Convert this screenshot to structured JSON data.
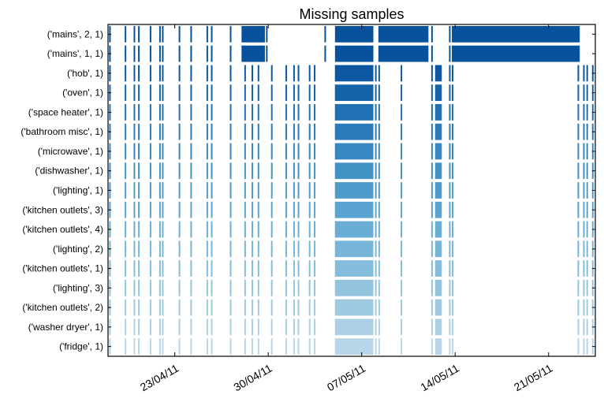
{
  "chart_data": {
    "type": "broken-bar timeline",
    "title": "Missing samples",
    "x_axis": {
      "range": [
        "2011-04-18",
        "2011-05-24T12:00"
      ],
      "tick_labels": [
        "23/04/11",
        "30/04/11",
        "07/05/11",
        "14/05/11",
        "21/05/11"
      ],
      "tick_values": [
        "2011-04-23",
        "2011-04-30",
        "2011-05-07",
        "2011-05-14",
        "2011-05-21"
      ]
    },
    "categories": [
      "('mains', 2, 1)",
      "('mains', 1, 1)",
      "('hob', 1)",
      "('oven', 1)",
      "('space heater', 1)",
      "('bathroom misc', 1)",
      "('microwave', 1)",
      "('dishwasher', 1)",
      "('lighting', 1)",
      "('kitchen outlets', 3)",
      "('kitchen outlets', 4)",
      "('lighting', 2)",
      "('kitchen outlets', 1)",
      "('lighting', 3)",
      "('kitchen outlets', 2)",
      "('washer dryer', 1)",
      "('fridge', 1)"
    ],
    "colors": [
      "#08519c",
      "#08519c",
      "#0d58a1",
      "#1763aa",
      "#2070b4",
      "#2b7bba",
      "#3787c0",
      "#4292c6",
      "#4f9bcb",
      "#5ba3d0",
      "#6aaed6",
      "#77b5d9",
      "#84bcdb",
      "#92c4de",
      "#9ecae1",
      "#abd0e6",
      "#b8d5ea"
    ],
    "mains_gaps": [
      [
        "2011-04-28T00:00",
        "2011-04-29T18:00"
      ],
      [
        "2011-05-05T00:00",
        "2011-05-07T21:00"
      ],
      [
        "2011-05-08T06:00",
        "2011-05-12T00:00"
      ],
      [
        "2011-05-13T18:00",
        "2011-05-23T08:00"
      ]
    ],
    "appliance_gaps": [
      [
        "2011-05-05T00:00",
        "2011-05-07T21:00"
      ],
      [
        "2011-05-12T12:00",
        "2011-05-13T00:00"
      ]
    ],
    "short_gaps": [
      "2011-04-18T02:00",
      "2011-04-19T06:00",
      "2011-04-19T22:00",
      "2011-04-20T06:00",
      "2011-04-21T03:00",
      "2011-04-21T20:00",
      "2011-04-22T01:00",
      "2011-04-23T07:00",
      "2011-04-24T04:00",
      "2011-04-25T09:00",
      "2011-04-25T17:00",
      "2011-04-27T03:00",
      "2011-04-28T05:00",
      "2011-04-28T18:00",
      "2011-04-29T05:00",
      "2011-04-30T05:00",
      "2011-05-01T07:00",
      "2011-05-01T21:00",
      "2011-05-02T05:00",
      "2011-05-03T01:00",
      "2011-05-03T10:00",
      "2011-05-05T00:00",
      "2011-05-08T00:00",
      "2011-05-08T06:00",
      "2011-05-09T22:00",
      "2011-05-12T05:00",
      "2011-05-13T13:00",
      "2011-05-13T18:00",
      "2011-05-23T04:00",
      "2011-05-23T14:00",
      "2011-05-23T20:00",
      "2011-05-24T06:00"
    ],
    "mains_only_short_gaps": [
      "2011-04-18T02:00",
      "2011-04-19T06:00",
      "2011-04-19T22:00",
      "2011-04-20T06:00",
      "2011-04-21T03:00",
      "2011-04-21T20:00",
      "2011-04-22T01:00",
      "2011-04-23T07:00",
      "2011-04-24T04:00",
      "2011-04-25T09:00",
      "2011-04-25T17:00",
      "2011-04-27T03:00",
      "2011-04-29T20:00",
      "2011-05-04T05:00",
      "2011-05-12T05:00",
      "2011-05-13T13:00"
    ],
    "grid": false,
    "legend": "none"
  }
}
